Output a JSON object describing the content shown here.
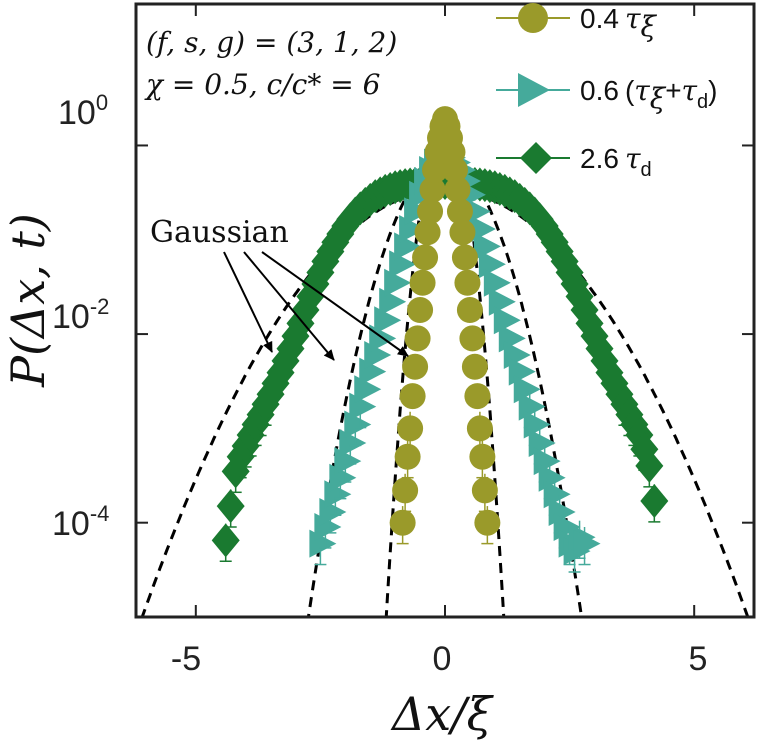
{
  "chart_data": {
    "type": "scatter",
    "title": "",
    "xlabel": "Δx/ξ",
    "ylabel": "P(Δx, t)",
    "xlim": [
      -6.2,
      6.2
    ],
    "ylim_log10": [
      -5.0,
      1.5
    ],
    "y_scale": "log",
    "grid": false,
    "legend_position": "top-right",
    "x_ticks": [
      {
        "value": -5,
        "label": "-5"
      },
      {
        "value": 0,
        "label": "0"
      },
      {
        "value": 5,
        "label": "5"
      }
    ],
    "y_ticks": [
      {
        "value": 1,
        "base": "10",
        "exp": "0"
      },
      {
        "value": 0.01,
        "base": "10",
        "exp": "-2"
      },
      {
        "value": 0.0001,
        "base": "10",
        "exp": "-4"
      }
    ],
    "annotations": {
      "params_line1": "(f, s, g) = (3, 1, 2)",
      "params_line2": "χ = 0.5, c/c* = 6",
      "gaussian_label": "Gaussian"
    },
    "series": [
      {
        "name": "0.4 τξ",
        "legend_parts": {
          "value": "0.4",
          "sym": "τ",
          "sub": "ξ"
        },
        "color": "#9a9a2a",
        "marker": "circle",
        "x": [
          -0.85,
          -0.8,
          -0.75,
          -0.7,
          -0.65,
          -0.6,
          -0.55,
          -0.5,
          -0.45,
          -0.4,
          -0.35,
          -0.3,
          -0.25,
          -0.2,
          -0.15,
          -0.1,
          -0.05,
          0,
          0.05,
          0.1,
          0.15,
          0.2,
          0.25,
          0.3,
          0.35,
          0.4,
          0.45,
          0.5,
          0.55,
          0.6,
          0.65,
          0.7,
          0.75,
          0.8,
          0.85
        ],
        "y": [
          0.0001,
          0.00022,
          0.0005,
          0.001,
          0.0022,
          0.0045,
          0.009,
          0.018,
          0.035,
          0.065,
          0.12,
          0.2,
          0.34,
          0.55,
          0.85,
          1.2,
          1.6,
          1.9,
          1.6,
          1.2,
          0.85,
          0.55,
          0.34,
          0.2,
          0.12,
          0.065,
          0.035,
          0.018,
          0.009,
          0.0045,
          0.0022,
          0.001,
          0.0005,
          0.00022,
          0.0001
        ],
        "gaussian_sigma": 0.24,
        "gaussian_peak": 1.75
      },
      {
        "name": "0.6 (τξ+τd)",
        "legend_parts": {
          "value": "0.6",
          "open": "(",
          "sym1": "τ",
          "sub1": "ξ",
          "plus": "+",
          "sym2": "τ",
          "sub2": "d",
          "close": ")"
        },
        "color": "#45aa9b",
        "marker": "triangle-right",
        "x": [
          -2.5,
          -2.4,
          -2.3,
          -2.2,
          -2.1,
          -2.0,
          -1.9,
          -1.8,
          -1.7,
          -1.6,
          -1.5,
          -1.4,
          -1.3,
          -1.2,
          -1.1,
          -1.0,
          -0.9,
          -0.8,
          -0.7,
          -0.6,
          -0.5,
          -0.4,
          -0.3,
          -0.2,
          -0.1,
          0,
          0.1,
          0.2,
          0.3,
          0.4,
          0.5,
          0.6,
          0.7,
          0.8,
          0.9,
          1.0,
          1.1,
          1.2,
          1.3,
          1.4,
          1.5,
          1.6,
          1.7,
          1.8,
          1.9,
          2.0,
          2.1,
          2.2,
          2.3,
          2.4,
          2.5,
          2.6,
          2.7,
          2.8
        ],
        "y": [
          6e-05,
          9e-05,
          0.00013,
          0.0002,
          0.0003,
          0.00045,
          0.0007,
          0.0011,
          0.0017,
          0.0026,
          0.004,
          0.006,
          0.009,
          0.014,
          0.022,
          0.035,
          0.055,
          0.085,
          0.13,
          0.2,
          0.3,
          0.42,
          0.55,
          0.66,
          0.74,
          0.76,
          0.74,
          0.66,
          0.55,
          0.42,
          0.3,
          0.2,
          0.13,
          0.085,
          0.055,
          0.035,
          0.022,
          0.014,
          0.009,
          0.006,
          0.004,
          0.0026,
          0.0017,
          0.0011,
          0.0007,
          0.00045,
          0.0003,
          0.0002,
          0.00013,
          9e-05,
          6e-05,
          5e-05,
          7e-05,
          6e-05
        ],
        "gaussian_sigma": 0.58,
        "gaussian_peak": 0.7
      },
      {
        "name": "2.6 τd",
        "legend_parts": {
          "value": "2.6",
          "sym": "τ",
          "sub": "d"
        },
        "color": "#1a7a30",
        "marker": "diamond",
        "x": [
          -4.4,
          -4.3,
          -4.2,
          -4.1,
          -4.0,
          -3.9,
          -3.8,
          -3.7,
          -3.6,
          -3.5,
          -3.4,
          -3.3,
          -3.2,
          -3.1,
          -3.0,
          -2.9,
          -2.8,
          -2.7,
          -2.6,
          -2.5,
          -2.4,
          -2.3,
          -2.2,
          -2.1,
          -2.0,
          -1.9,
          -1.8,
          -1.7,
          -1.6,
          -1.5,
          -1.4,
          -1.3,
          -1.2,
          -1.1,
          -1.0,
          -0.9,
          -0.8,
          -0.7,
          -0.6,
          -0.5,
          -0.4,
          -0.3,
          -0.2,
          -0.1,
          0,
          0.1,
          0.2,
          0.3,
          0.4,
          0.5,
          0.6,
          0.7,
          0.8,
          0.9,
          1.0,
          1.1,
          1.2,
          1.3,
          1.4,
          1.5,
          1.6,
          1.7,
          1.8,
          1.9,
          2.0,
          2.1,
          2.2,
          2.3,
          2.4,
          2.5,
          2.6,
          2.7,
          2.8,
          2.9,
          3.0,
          3.1,
          3.2,
          3.3,
          3.4,
          3.5,
          3.6,
          3.7,
          3.8,
          3.9,
          4.0,
          4.1,
          4.2
        ],
        "y": [
          6.5e-05,
          0.00015,
          0.00035,
          0.0005,
          0.00065,
          0.00085,
          0.0011,
          0.0014,
          0.0018,
          0.0023,
          0.003,
          0.0039,
          0.0052,
          0.007,
          0.0095,
          0.013,
          0.018,
          0.025,
          0.034,
          0.045,
          0.059,
          0.075,
          0.094,
          0.115,
          0.14,
          0.165,
          0.19,
          0.215,
          0.24,
          0.265,
          0.29,
          0.31,
          0.33,
          0.345,
          0.36,
          0.37,
          0.38,
          0.385,
          0.39,
          0.395,
          0.4,
          0.4,
          0.4,
          0.4,
          0.4,
          0.4,
          0.4,
          0.4,
          0.4,
          0.395,
          0.39,
          0.385,
          0.38,
          0.37,
          0.36,
          0.345,
          0.33,
          0.31,
          0.29,
          0.265,
          0.24,
          0.215,
          0.19,
          0.165,
          0.14,
          0.115,
          0.094,
          0.075,
          0.059,
          0.045,
          0.034,
          0.025,
          0.018,
          0.013,
          0.0095,
          0.007,
          0.0052,
          0.0039,
          0.003,
          0.0023,
          0.0018,
          0.0014,
          0.0011,
          0.00085,
          0.0006,
          0.0004,
          0.00017
        ],
        "gaussian_sigma": 1.33,
        "gaussian_peak": 0.34
      }
    ]
  }
}
